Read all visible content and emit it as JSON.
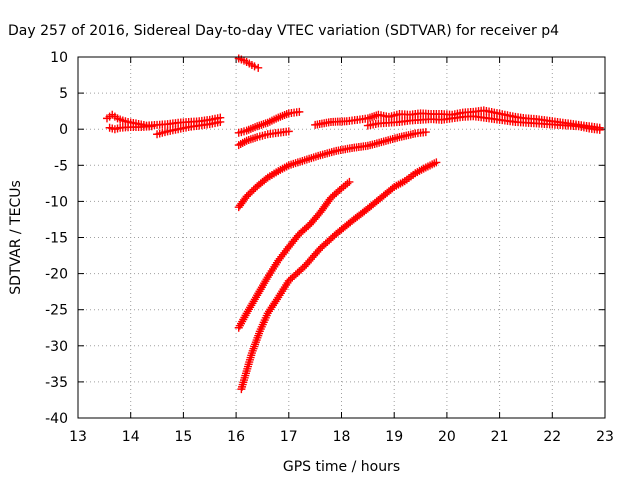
{
  "chart_data": {
    "type": "scatter",
    "title": "Day 257 of 2016, Sidereal Day-to-day VTEC variation (SDTVAR) for receiver p4",
    "xlabel": "GPS time / hours",
    "ylabel": "SDTVAR / TECUs",
    "xlim": [
      13,
      23
    ],
    "ylim": [
      -40,
      10
    ],
    "xticks": [
      "13",
      "14",
      "15",
      "16",
      "17",
      "18",
      "19",
      "20",
      "21",
      "22",
      "23"
    ],
    "yticks": [
      "10",
      "5",
      "0",
      "-5",
      "-10",
      "-15",
      "-20",
      "-25",
      "-30",
      "-35",
      "-40"
    ],
    "grid": true,
    "legend": "none",
    "marker": "plus",
    "color": "#ff0000",
    "series": [
      {
        "points": [
          [
            13.55,
            1.5
          ],
          [
            13.65,
            2.0
          ],
          [
            13.75,
            1.5
          ],
          [
            13.85,
            1.2
          ],
          [
            13.95,
            1.0
          ],
          [
            14.1,
            0.8
          ],
          [
            14.3,
            0.5
          ],
          [
            14.5,
            0.6
          ],
          [
            14.7,
            0.7
          ],
          [
            14.9,
            0.9
          ],
          [
            15.1,
            1.0
          ],
          [
            15.3,
            1.1
          ],
          [
            15.5,
            1.3
          ],
          [
            15.7,
            1.6
          ]
        ]
      },
      {
        "points": [
          [
            13.6,
            0.2
          ],
          [
            13.7,
            0.0
          ],
          [
            13.8,
            0.2
          ],
          [
            14.0,
            0.3
          ],
          [
            14.2,
            0.3
          ],
          [
            14.4,
            0.4
          ]
        ]
      },
      {
        "points": [
          [
            14.5,
            -0.7
          ],
          [
            14.7,
            -0.3
          ],
          [
            14.9,
            0.0
          ],
          [
            15.1,
            0.3
          ],
          [
            15.3,
            0.5
          ],
          [
            15.5,
            0.7
          ],
          [
            15.7,
            1.0
          ]
        ]
      },
      {
        "points": [
          [
            16.05,
            9.8
          ],
          [
            16.15,
            9.5
          ],
          [
            16.25,
            9.1
          ],
          [
            16.35,
            8.7
          ],
          [
            16.42,
            8.5
          ]
        ]
      },
      {
        "points": [
          [
            16.05,
            -0.5
          ],
          [
            16.2,
            -0.2
          ],
          [
            16.4,
            0.4
          ],
          [
            16.6,
            0.9
          ],
          [
            16.8,
            1.6
          ],
          [
            17.0,
            2.2
          ],
          [
            17.2,
            2.4
          ]
        ]
      },
      {
        "points": [
          [
            16.05,
            -2.2
          ],
          [
            16.2,
            -1.6
          ],
          [
            16.4,
            -1.1
          ],
          [
            16.6,
            -0.7
          ],
          [
            16.8,
            -0.5
          ],
          [
            17.0,
            -0.3
          ]
        ]
      },
      {
        "points": [
          [
            16.05,
            -10.8
          ],
          [
            16.2,
            -9.3
          ],
          [
            16.4,
            -7.9
          ],
          [
            16.6,
            -6.7
          ],
          [
            16.8,
            -5.8
          ],
          [
            17.0,
            -5.0
          ],
          [
            17.3,
            -4.3
          ],
          [
            17.6,
            -3.6
          ],
          [
            17.9,
            -3.0
          ],
          [
            18.2,
            -2.6
          ],
          [
            18.5,
            -2.3
          ],
          [
            18.8,
            -1.7
          ],
          [
            19.1,
            -1.1
          ],
          [
            19.4,
            -0.6
          ],
          [
            19.6,
            -0.4
          ]
        ]
      },
      {
        "points": [
          [
            16.05,
            -27.5
          ],
          [
            16.2,
            -25.5
          ],
          [
            16.4,
            -23.0
          ],
          [
            16.6,
            -20.5
          ],
          [
            16.8,
            -18.2
          ],
          [
            17.0,
            -16.3
          ],
          [
            17.2,
            -14.5
          ],
          [
            17.4,
            -13.2
          ],
          [
            17.6,
            -11.5
          ],
          [
            17.8,
            -9.5
          ],
          [
            18.0,
            -8.2
          ],
          [
            18.15,
            -7.3
          ]
        ]
      },
      {
        "points": [
          [
            16.1,
            -36.0
          ],
          [
            16.2,
            -33.5
          ],
          [
            16.3,
            -31.0
          ],
          [
            16.45,
            -28.0
          ],
          [
            16.6,
            -25.5
          ],
          [
            16.8,
            -23.3
          ],
          [
            17.0,
            -21.0
          ],
          [
            17.3,
            -19.0
          ],
          [
            17.6,
            -16.5
          ],
          [
            17.9,
            -14.5
          ],
          [
            18.2,
            -12.7
          ],
          [
            18.5,
            -11.0
          ],
          [
            18.8,
            -9.2
          ],
          [
            19.0,
            -8.0
          ],
          [
            19.2,
            -7.2
          ],
          [
            19.4,
            -6.1
          ],
          [
            19.6,
            -5.3
          ],
          [
            19.8,
            -4.6
          ]
        ]
      },
      {
        "points": [
          [
            17.5,
            0.6
          ],
          [
            17.8,
            1.0
          ],
          [
            18.1,
            1.1
          ],
          [
            18.3,
            1.3
          ],
          [
            18.5,
            1.5
          ],
          [
            18.7,
            2.0
          ],
          [
            18.9,
            1.7
          ],
          [
            19.1,
            2.1
          ],
          [
            19.3,
            2.0
          ],
          [
            19.5,
            2.2
          ],
          [
            19.7,
            2.1
          ],
          [
            19.9,
            2.1
          ],
          [
            20.1,
            2.0
          ],
          [
            20.3,
            2.3
          ],
          [
            20.5,
            2.4
          ],
          [
            20.7,
            2.6
          ],
          [
            20.9,
            2.3
          ],
          [
            21.1,
            2.0
          ],
          [
            21.3,
            1.7
          ],
          [
            21.5,
            1.5
          ],
          [
            21.7,
            1.4
          ],
          [
            21.9,
            1.2
          ],
          [
            22.1,
            1.0
          ],
          [
            22.3,
            0.8
          ],
          [
            22.5,
            0.6
          ],
          [
            22.7,
            0.4
          ],
          [
            22.9,
            0.2
          ]
        ]
      },
      {
        "points": [
          [
            18.5,
            0.5
          ],
          [
            18.7,
            0.8
          ],
          [
            18.9,
            0.9
          ],
          [
            19.1,
            1.0
          ],
          [
            19.3,
            1.2
          ],
          [
            19.5,
            1.3
          ],
          [
            19.7,
            1.4
          ],
          [
            19.9,
            1.3
          ],
          [
            20.1,
            1.5
          ],
          [
            20.3,
            1.7
          ],
          [
            20.5,
            1.8
          ],
          [
            20.7,
            1.6
          ],
          [
            20.9,
            1.4
          ],
          [
            21.1,
            1.2
          ],
          [
            21.3,
            1.0
          ],
          [
            21.5,
            0.9
          ],
          [
            21.7,
            0.8
          ],
          [
            21.9,
            0.7
          ],
          [
            22.1,
            0.6
          ],
          [
            22.3,
            0.5
          ],
          [
            22.5,
            0.4
          ],
          [
            22.7,
            0.1
          ],
          [
            22.9,
            -0.1
          ]
        ]
      }
    ]
  }
}
